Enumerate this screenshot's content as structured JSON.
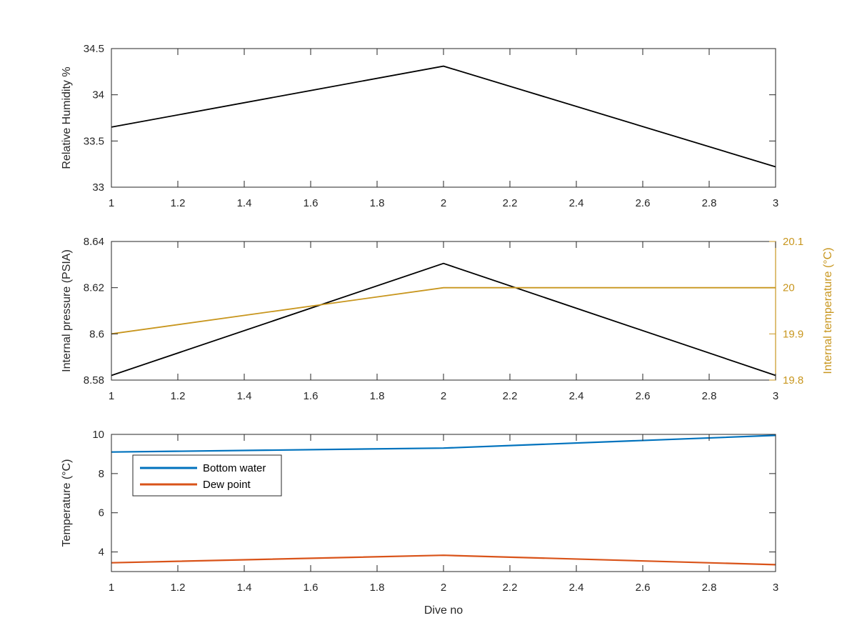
{
  "chart_data": [
    {
      "type": "line",
      "x": [
        1,
        2,
        3
      ],
      "series": [
        {
          "values": [
            33.65,
            34.31,
            33.22
          ],
          "color": "#000000",
          "axis": "left"
        }
      ],
      "xlabel": "",
      "ylabel": "Relative Humidity %",
      "xlim": [
        1,
        3
      ],
      "ylim": [
        33,
        34.5
      ],
      "xticks": [
        1,
        1.2,
        1.4,
        1.6,
        1.8,
        2,
        2.2,
        2.4,
        2.6,
        2.8,
        3
      ],
      "yticks": [
        33,
        33.5,
        34,
        34.5
      ],
      "grid": false
    },
    {
      "type": "line",
      "x": [
        1,
        2,
        3
      ],
      "series": [
        {
          "values": [
            8.582,
            8.6305,
            8.582
          ],
          "color": "#000000",
          "axis": "left"
        },
        {
          "values": [
            19.9,
            20.0,
            20.0
          ],
          "color": "#C8961E",
          "axis": "right"
        }
      ],
      "xlabel": "",
      "ylabel": "Internal pressure (PSIA)",
      "ylabel_right": "Internal temperature (°C)",
      "xlim": [
        1,
        3
      ],
      "ylim": [
        8.58,
        8.64
      ],
      "ylim_right": [
        19.8,
        20.1
      ],
      "xticks": [
        1,
        1.2,
        1.4,
        1.6,
        1.8,
        2,
        2.2,
        2.4,
        2.6,
        2.8,
        3
      ],
      "yticks": [
        8.58,
        8.6,
        8.62,
        8.64
      ],
      "yticks_right": [
        19.8,
        19.9,
        20,
        20.1
      ],
      "right_axis_color": "#C8961E",
      "grid": false
    },
    {
      "type": "line",
      "x": [
        1,
        2,
        3
      ],
      "series": [
        {
          "name": "Bottom water",
          "values": [
            9.1,
            9.3,
            9.95
          ],
          "color": "#0072BD",
          "axis": "left"
        },
        {
          "name": "Dew point",
          "values": [
            3.45,
            3.83,
            3.35
          ],
          "color": "#D95319",
          "axis": "left"
        }
      ],
      "xlabel": "Dive no",
      "ylabel": "Temperature (°C)",
      "xlim": [
        1,
        3
      ],
      "ylim": [
        3,
        10
      ],
      "xticks": [
        1,
        1.2,
        1.4,
        1.6,
        1.8,
        2,
        2.2,
        2.4,
        2.6,
        2.8,
        3
      ],
      "yticks": [
        4,
        6,
        8,
        10
      ],
      "legend_placement": "top-left",
      "grid": false
    }
  ]
}
